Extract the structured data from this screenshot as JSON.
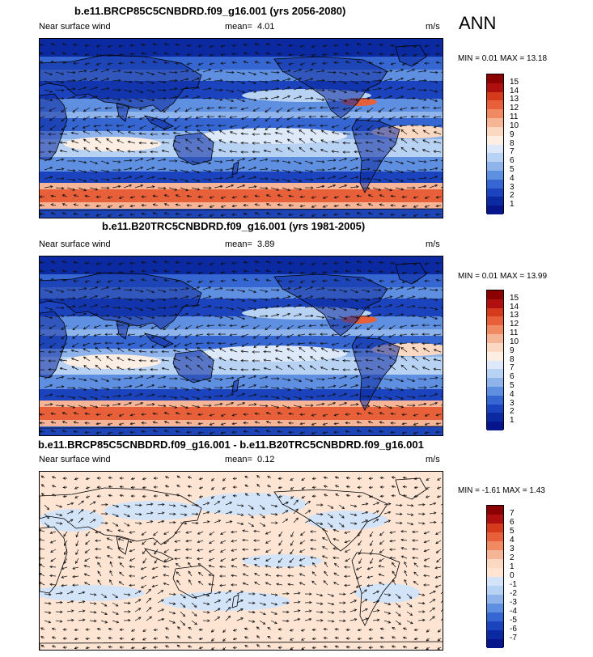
{
  "season": "ANN",
  "panels": [
    {
      "title": "b.e11.BRCP85C5CNBDRD.f09_g16.001 (yrs 2056-2080)",
      "variable": "Near surface wind",
      "mean_label": "mean=",
      "mean_value": "4.01",
      "units": "m/s",
      "minmax": "MIN =  0.01 MAX =  13.18",
      "legend_labels": [
        "15",
        "14",
        "13",
        "12",
        "11",
        "10",
        "9",
        "8",
        "7",
        "6",
        "5",
        "4",
        "3",
        "2",
        "1"
      ]
    },
    {
      "title": "b.e11.B20TRC5CNBDRD.f09_g16.001 (yrs 1981-2005)",
      "variable": "Near surface wind",
      "mean_label": "mean=",
      "mean_value": "3.89",
      "units": "m/s",
      "minmax": "MIN =  0.01 MAX =  13.99",
      "legend_labels": [
        "15",
        "14",
        "13",
        "12",
        "11",
        "10",
        "9",
        "8",
        "7",
        "6",
        "5",
        "4",
        "3",
        "2",
        "1"
      ]
    },
    {
      "title": "b.e11.BRCP85C5CNBDRD.f09_g16.001 - b.e11.B20TRC5CNBDRD.f09_g16.001",
      "variable": "Near surface wind",
      "mean_label": "mean=",
      "mean_value": "0.12",
      "units": "m/s",
      "minmax": "MIN = -1.61 MAX =  1.43",
      "legend_labels": [
        "7",
        "6",
        "5",
        "4",
        "3",
        "2",
        "1",
        "0",
        "-1",
        "-2",
        "-3",
        "-4",
        "-5",
        "-6",
        "-7"
      ]
    }
  ],
  "colors": {
    "speed_scale": [
      "#8b0000",
      "#b00f0f",
      "#d43a1c",
      "#e8603a",
      "#f08a62",
      "#f6b596",
      "#fbd8c2",
      "#fdeee3",
      "#dde9f9",
      "#b8d2f4",
      "#8fb4ec",
      "#5f8fe0",
      "#3566d2",
      "#1b43bd",
      "#0b2aa1",
      "#06158a"
    ],
    "diff_scale": [
      "#8b0000",
      "#b00f0f",
      "#d43a1c",
      "#e8603a",
      "#f08a62",
      "#f6b596",
      "#fbd8c2",
      "#fde4d3",
      "#d4e4f8",
      "#b8d2f4",
      "#8fb4ec",
      "#5f8fe0",
      "#3566d2",
      "#1b43bd",
      "#0b2aa1",
      "#06158a"
    ],
    "diff_pos": "#fde4d3",
    "diff_neg": "#d4e4f8"
  }
}
